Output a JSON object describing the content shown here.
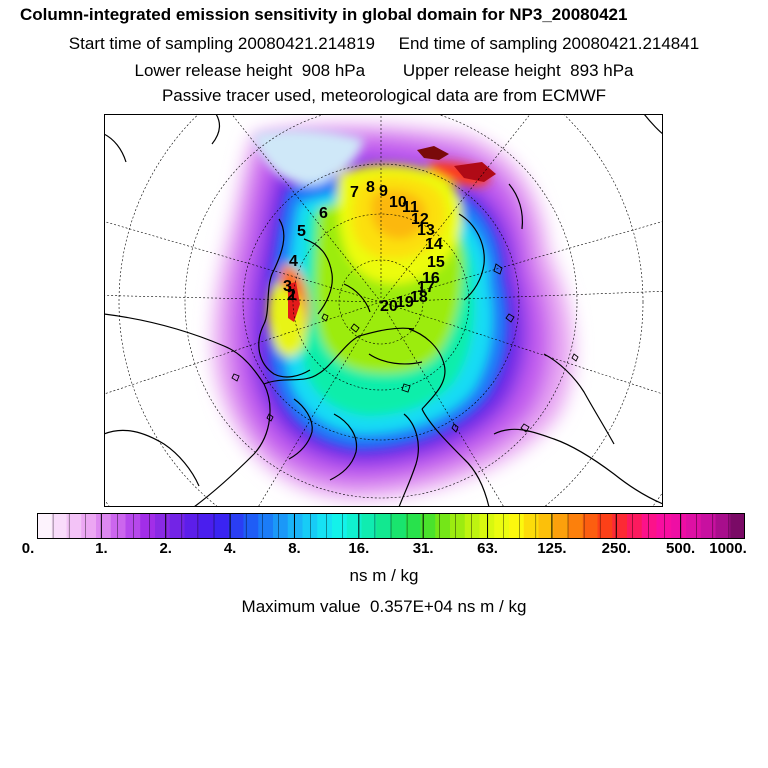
{
  "header": {
    "title": "Column-integrated emission sensitivity in global domain for NP3_20080421",
    "line1": "Start time of sampling 20080421.214819     End time of sampling 20080421.214841",
    "line2": "Lower release height  908 hPa        Upper release height  893 hPa",
    "line3": "Passive tracer used, meteorological data are from ECMWF"
  },
  "map": {
    "projection": "north-polar-stereographic",
    "trajectory_labels": [
      "1",
      "2",
      "3",
      "4",
      "5",
      "6",
      "7",
      "8",
      "9",
      "10",
      "11",
      "12",
      "13",
      "14",
      "15",
      "16",
      "17",
      "18",
      "19",
      "20"
    ]
  },
  "colorbar": {
    "tick_labels": [
      "0.",
      "1.",
      "2.",
      "4.",
      "8.",
      "16.",
      "31.",
      "63.",
      "125.",
      "250.",
      "500.",
      "1000."
    ],
    "colors": [
      "#fdf3fd",
      "#f9dcfb",
      "#f3c3f7",
      "#eca7f3",
      "#dd88f0",
      "#cc66ee",
      "#b648ec",
      "#a22ee8",
      "#8a2ae4",
      "#7324e6",
      "#5c1eea",
      "#4a1eee",
      "#3a24f2",
      "#2a3ef4",
      "#1f5df6",
      "#1b7cf8",
      "#1b98f8",
      "#1ab4f8",
      "#17ccf6",
      "#16e2f4",
      "#13f2ea",
      "#10f0cf",
      "#10ecb0",
      "#12e890",
      "#19e46e",
      "#28e24c",
      "#4ae22c",
      "#74e618",
      "#9cec10",
      "#bef410",
      "#d8f80f",
      "#ecfc10",
      "#fcf80e",
      "#fcdc0a",
      "#fcc00a",
      "#fca00c",
      "#fc800c",
      "#fc5e10",
      "#fc4018",
      "#fc2a34",
      "#fc1a5e",
      "#fc128a",
      "#f80ea0",
      "#ee0ea4",
      "#de10a4",
      "#c810a0",
      "#a80e8c",
      "#7a0a66"
    ],
    "units": "ns m / kg"
  },
  "footer": {
    "max_value": "Maximum value  0.357E+04 ns m / kg"
  }
}
